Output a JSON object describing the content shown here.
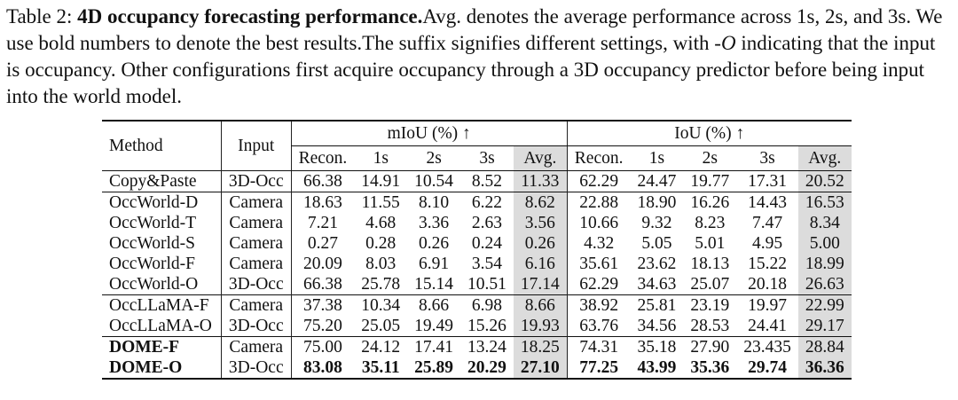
{
  "caption": {
    "label": "Table 2: ",
    "title": "4D occupancy forecasting performance.",
    "text_1": "Avg. denotes the average performance across 1s, 2s, and 3s. We use bold numbers to denote the best results.The suffix signifies different settings, with ",
    "italic": "-O",
    "text_2": " indicating that the input is occupancy. Other configurations first acquire occupancy through a 3D occupancy predictor before being input into the world model."
  },
  "table": {
    "col_method": "Method",
    "col_input": "Input",
    "group_miou": "mIoU (%) ↑",
    "group_iou": "IoU (%) ↑",
    "subcols": [
      "Recon.",
      "1s",
      "2s",
      "3s",
      "Avg."
    ],
    "rows": [
      {
        "method": "Copy&Paste",
        "input": "3D-Occ",
        "miou": [
          "66.38",
          "14.91",
          "10.54",
          "8.52",
          "11.33"
        ],
        "iou": [
          "62.29",
          "24.47",
          "19.77",
          "17.31",
          "20.52"
        ]
      },
      {
        "method": "OccWorld-D",
        "input": "Camera",
        "miou": [
          "18.63",
          "11.55",
          "8.10",
          "6.22",
          "8.62"
        ],
        "iou": [
          "22.88",
          "18.90",
          "16.26",
          "14.43",
          "16.53"
        ]
      },
      {
        "method": "OccWorld-T",
        "input": "Camera",
        "miou": [
          "7.21",
          "4.68",
          "3.36",
          "2.63",
          "3.56"
        ],
        "iou": [
          "10.66",
          "9.32",
          "8.23",
          "7.47",
          "8.34"
        ]
      },
      {
        "method": "OccWorld-S",
        "input": "Camera",
        "miou": [
          "0.27",
          "0.28",
          "0.26",
          "0.24",
          "0.26"
        ],
        "iou": [
          "4.32",
          "5.05",
          "5.01",
          "4.95",
          "5.00"
        ]
      },
      {
        "method": "OccWorld-F",
        "input": "Camera",
        "miou": [
          "20.09",
          "8.03",
          "6.91",
          "3.54",
          "6.16"
        ],
        "iou": [
          "35.61",
          "23.62",
          "18.13",
          "15.22",
          "18.99"
        ]
      },
      {
        "method": "OccWorld-O",
        "input": "3D-Occ",
        "miou": [
          "66.38",
          "25.78",
          "15.14",
          "10.51",
          "17.14"
        ],
        "iou": [
          "62.29",
          "34.63",
          "25.07",
          "20.18",
          "26.63"
        ]
      },
      {
        "method": "OccLLaMA-F",
        "input": "Camera",
        "miou": [
          "37.38",
          "10.34",
          "8.66",
          "6.98",
          "8.66"
        ],
        "iou": [
          "38.92",
          "25.81",
          "23.19",
          "19.97",
          "22.99"
        ]
      },
      {
        "method": "OccLLaMA-O",
        "input": "3D-Occ",
        "miou": [
          "75.20",
          "25.05",
          "19.49",
          "15.26",
          "19.93"
        ],
        "iou": [
          "63.76",
          "34.56",
          "28.53",
          "24.41",
          "29.17"
        ]
      },
      {
        "method": "DOME-F",
        "input": "Camera",
        "miou": [
          "75.00",
          "24.12",
          "17.41",
          "13.24",
          "18.25"
        ],
        "iou": [
          "74.31",
          "35.18",
          "27.90",
          "23.435",
          "28.84"
        ]
      },
      {
        "method": "DOME-O",
        "input": "3D-Occ",
        "miou": [
          "83.08",
          "35.11",
          "25.89",
          "20.29",
          "27.10"
        ],
        "iou": [
          "77.25",
          "43.99",
          "35.36",
          "29.74",
          "36.36"
        ]
      }
    ]
  }
}
